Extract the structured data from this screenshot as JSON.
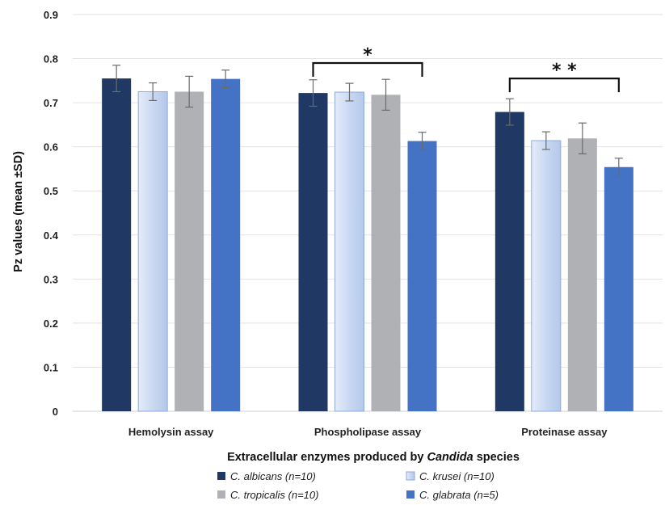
{
  "chart_data": {
    "type": "bar",
    "title": "",
    "xlabel_parts": [
      {
        "text": "Extracellular enzymes produced by ",
        "italic": false
      },
      {
        "text": "Candida",
        "italic": true
      },
      {
        "text": " species",
        "italic": false
      }
    ],
    "ylabel": "Pz values (mean ±SD)",
    "ylim": [
      0,
      0.9
    ],
    "yticks": [
      "0",
      "0.1",
      "0.2",
      "0.3",
      "0.4",
      "0.5",
      "0.6",
      "0.7",
      "0.8",
      "0.9"
    ],
    "grid": true,
    "categories": [
      "Hemolysin assay",
      "Phospholipase assay",
      "Proteinase assay"
    ],
    "series": [
      {
        "name": "C. albicans (n=10)",
        "color": "#1f3864",
        "values": [
          0.755,
          0.722,
          0.679
        ],
        "errors": [
          0.03,
          0.03,
          0.03
        ]
      },
      {
        "name": "C. krusei (n=10)",
        "color": "#c9d8f2",
        "values": [
          0.725,
          0.724,
          0.614
        ],
        "errors": [
          0.02,
          0.02,
          0.02
        ]
      },
      {
        "name": "C. tropicalis (n=10)",
        "color": "#b0b1b5",
        "values": [
          0.725,
          0.718,
          0.619
        ],
        "errors": [
          0.035,
          0.035,
          0.035
        ]
      },
      {
        "name": "C. glabrata (n=5)",
        "color": "#4472c4",
        "values": [
          0.754,
          0.613,
          0.554
        ],
        "errors": [
          0.02,
          0.02,
          0.02
        ]
      }
    ],
    "legend_position": "bottom",
    "significance": [
      {
        "category": 1,
        "from_series": 0,
        "to_series": 3,
        "y": 0.79,
        "label": "*"
      },
      {
        "category": 2,
        "from_series": 0,
        "to_series": 3,
        "y": 0.755,
        "label": "* *"
      }
    ]
  }
}
